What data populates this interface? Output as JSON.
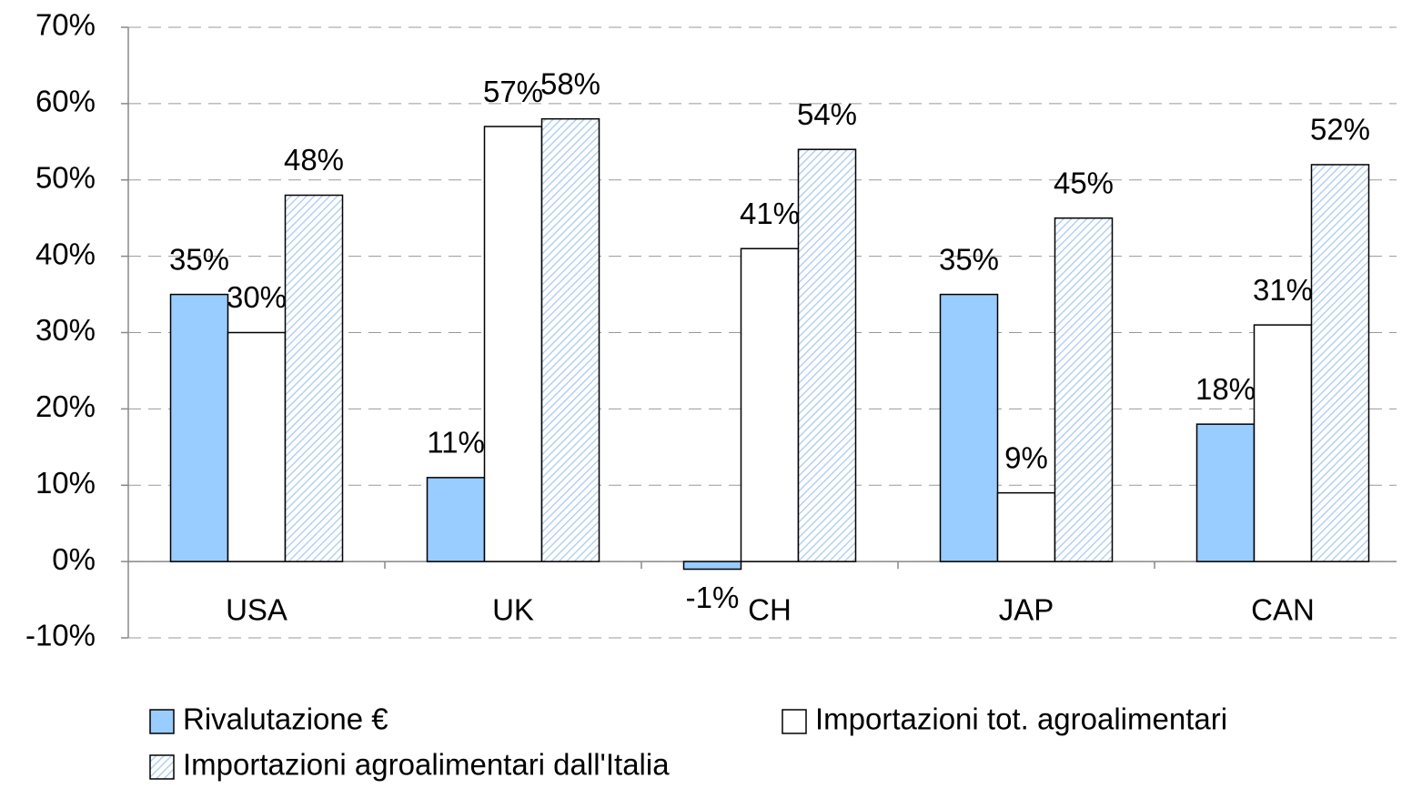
{
  "chart_data": {
    "type": "bar",
    "categories": [
      "USA",
      "UK",
      "CH",
      "JAP",
      "CAN"
    ],
    "series": [
      {
        "name": "Rivalutazione €",
        "color": "#99ccff",
        "values": [
          35,
          11,
          -1,
          35,
          18
        ],
        "value_labels": [
          "35%",
          "11%",
          "-1%",
          "35%",
          "18%"
        ]
      },
      {
        "name": "Importazioni tot. agroalimentari",
        "color": "#ffffff",
        "values": [
          30,
          57,
          41,
          9,
          31
        ],
        "value_labels": [
          "30%",
          "57%",
          "41%",
          "9%",
          "31%"
        ]
      },
      {
        "name": "Importazioni agroalimentari dall'Italia",
        "color": "#a8c8f0",
        "pattern": "hatch",
        "values": [
          48,
          58,
          54,
          45,
          52
        ],
        "value_labels": [
          "48%",
          "58%",
          "54%",
          "45%",
          "52%"
        ]
      }
    ],
    "ylim": [
      -10,
      70
    ],
    "yticks": [
      {
        "value": -10,
        "label": "-10%"
      },
      {
        "value": 0,
        "label": "0%"
      },
      {
        "value": 10,
        "label": "10%"
      },
      {
        "value": 20,
        "label": "20%"
      },
      {
        "value": 30,
        "label": "30%"
      },
      {
        "value": 40,
        "label": "40%"
      },
      {
        "value": 50,
        "label": "50%"
      },
      {
        "value": 60,
        "label": "60%"
      },
      {
        "value": 70,
        "label": "70%"
      }
    ],
    "grid": true,
    "legend": "bottom"
  }
}
